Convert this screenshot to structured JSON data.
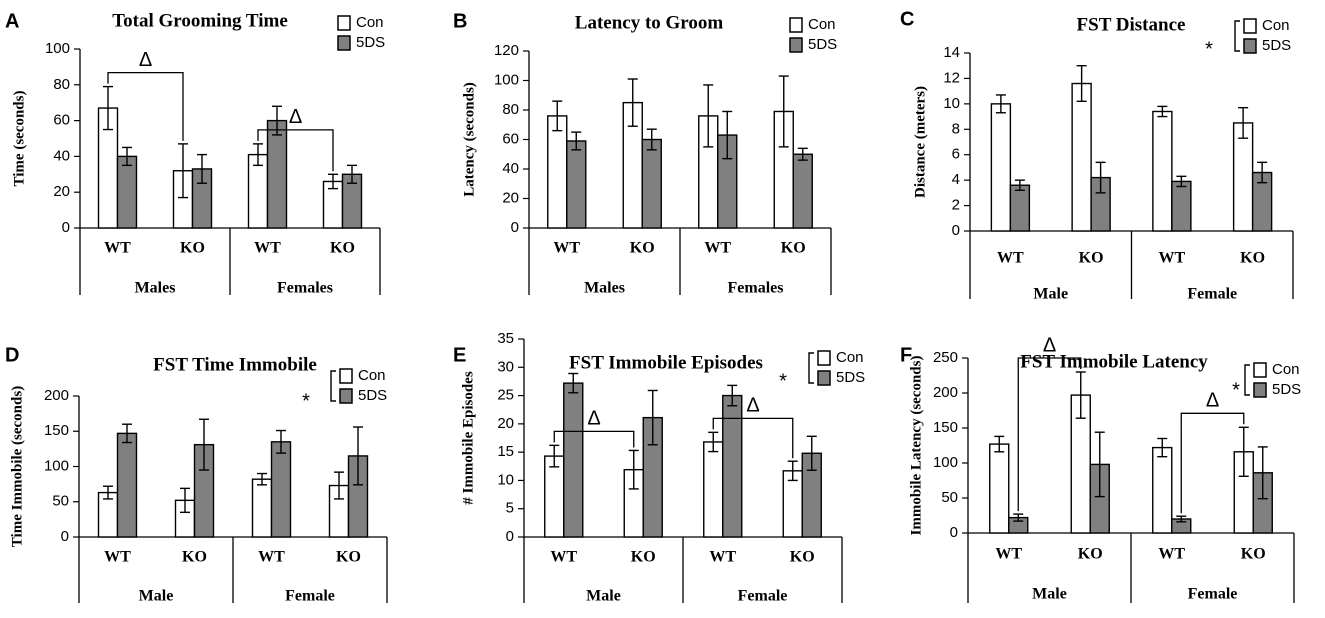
{
  "colors": {
    "con_fill": "#ffffff",
    "ds_fill": "#808080",
    "stroke": "#000000"
  },
  "legend_labels": [
    "Con",
    "5DS"
  ],
  "chart_data": [
    {
      "panel": "A",
      "type": "bar",
      "title": "Total Grooming Time",
      "ylabel": "Time (seconds)",
      "ylim": [
        0,
        100
      ],
      "ytick_step": 20,
      "categories": [
        "WT",
        "KO",
        "WT",
        "KO"
      ],
      "groups": [
        "Males",
        "Females"
      ],
      "series": [
        {
          "name": "Con",
          "values": [
            67,
            32,
            41,
            26
          ],
          "errors": [
            12,
            15,
            6,
            4
          ]
        },
        {
          "name": "5DS",
          "values": [
            40,
            33,
            60,
            30
          ],
          "errors": [
            5,
            8,
            8,
            5
          ]
        }
      ],
      "asterisk": false,
      "annotations": [
        {
          "label": "Δ",
          "from": [
            0,
            "Con"
          ],
          "to": [
            1,
            "Con"
          ]
        },
        {
          "label": "Δ",
          "from": [
            2,
            "Con"
          ],
          "to": [
            3,
            "Con"
          ]
        }
      ]
    },
    {
      "panel": "B",
      "type": "bar",
      "title": "Latency to Groom",
      "ylabel": "Latency (seconds)",
      "ylim": [
        0,
        120
      ],
      "ytick_step": 20,
      "categories": [
        "WT",
        "KO",
        "WT",
        "KO"
      ],
      "groups": [
        "Males",
        "Females"
      ],
      "series": [
        {
          "name": "Con",
          "values": [
            76,
            85,
            76,
            79
          ],
          "errors": [
            10,
            16,
            21,
            24
          ]
        },
        {
          "name": "5DS",
          "values": [
            59,
            60,
            63,
            50
          ],
          "errors": [
            6,
            7,
            16,
            4
          ]
        }
      ],
      "asterisk": false,
      "annotations": []
    },
    {
      "panel": "C",
      "type": "bar",
      "title": "FST Distance",
      "ylabel": "Distance (meters)",
      "ylim": [
        0,
        14
      ],
      "ytick_step": 2,
      "categories": [
        "WT",
        "KO",
        "WT",
        "KO"
      ],
      "groups": [
        "Male",
        "Female"
      ],
      "series": [
        {
          "name": "Con",
          "values": [
            10.0,
            11.6,
            9.4,
            8.5
          ],
          "errors": [
            0.7,
            1.4,
            0.4,
            1.2
          ]
        },
        {
          "name": "5DS",
          "values": [
            3.6,
            4.2,
            3.9,
            4.6
          ],
          "errors": [
            0.4,
            1.2,
            0.4,
            0.8
          ]
        }
      ],
      "asterisk": true,
      "annotations": []
    },
    {
      "panel": "D",
      "type": "bar",
      "title": "FST Time Immobile",
      "ylabel": "Time Immobile (seconds)",
      "ylim": [
        0,
        200
      ],
      "ytick_step": 50,
      "categories": [
        "WT",
        "KO",
        "WT",
        "KO"
      ],
      "groups": [
        "Male",
        "Female"
      ],
      "series": [
        {
          "name": "Con",
          "values": [
            63,
            52,
            82,
            73
          ],
          "errors": [
            9,
            17,
            8,
            19
          ]
        },
        {
          "name": "5DS",
          "values": [
            147,
            131,
            135,
            115
          ],
          "errors": [
            13,
            36,
            16,
            41
          ]
        }
      ],
      "asterisk": true,
      "annotations": []
    },
    {
      "panel": "E",
      "type": "bar",
      "title": "FST Immobile Episodes",
      "ylabel": "# Immobile Episodes",
      "ylim": [
        0,
        35
      ],
      "ytick_step": 5,
      "categories": [
        "WT",
        "KO",
        "WT",
        "KO"
      ],
      "groups": [
        "Male",
        "Female"
      ],
      "series": [
        {
          "name": "Con",
          "values": [
            14.3,
            11.9,
            16.8,
            11.7
          ],
          "errors": [
            1.9,
            3.4,
            1.7,
            1.7
          ]
        },
        {
          "name": "5DS",
          "values": [
            27.2,
            21.1,
            25.0,
            14.8
          ],
          "errors": [
            1.7,
            4.8,
            1.8,
            3.0
          ]
        }
      ],
      "asterisk": true,
      "annotations": [
        {
          "label": "Δ",
          "from": [
            0,
            "Con"
          ],
          "to": [
            1,
            "Con"
          ]
        },
        {
          "label": "Δ",
          "from": [
            2,
            "Con"
          ],
          "to": [
            3,
            "Con"
          ]
        }
      ]
    },
    {
      "panel": "F",
      "type": "bar",
      "title": "FST Immobile Latency",
      "ylabel": "Immobile Latency (seconds)",
      "ylim": [
        0,
        250
      ],
      "ytick_step": 50,
      "categories": [
        "WT",
        "KO",
        "WT",
        "KO"
      ],
      "groups": [
        "Male",
        "Female"
      ],
      "series": [
        {
          "name": "Con",
          "values": [
            127,
            197,
            122,
            116
          ],
          "errors": [
            11,
            33,
            13,
            35
          ]
        },
        {
          "name": "5DS",
          "values": [
            22,
            98,
            20,
            86
          ],
          "errors": [
            5,
            46,
            4,
            37
          ]
        }
      ],
      "asterisk": true,
      "annotations": [
        {
          "label": "Δ",
          "from": [
            0,
            "5DS"
          ],
          "to": [
            1,
            "Con"
          ]
        },
        {
          "label": "Δ",
          "from": [
            2,
            "5DS"
          ],
          "to": [
            3,
            "Con"
          ]
        }
      ]
    }
  ]
}
